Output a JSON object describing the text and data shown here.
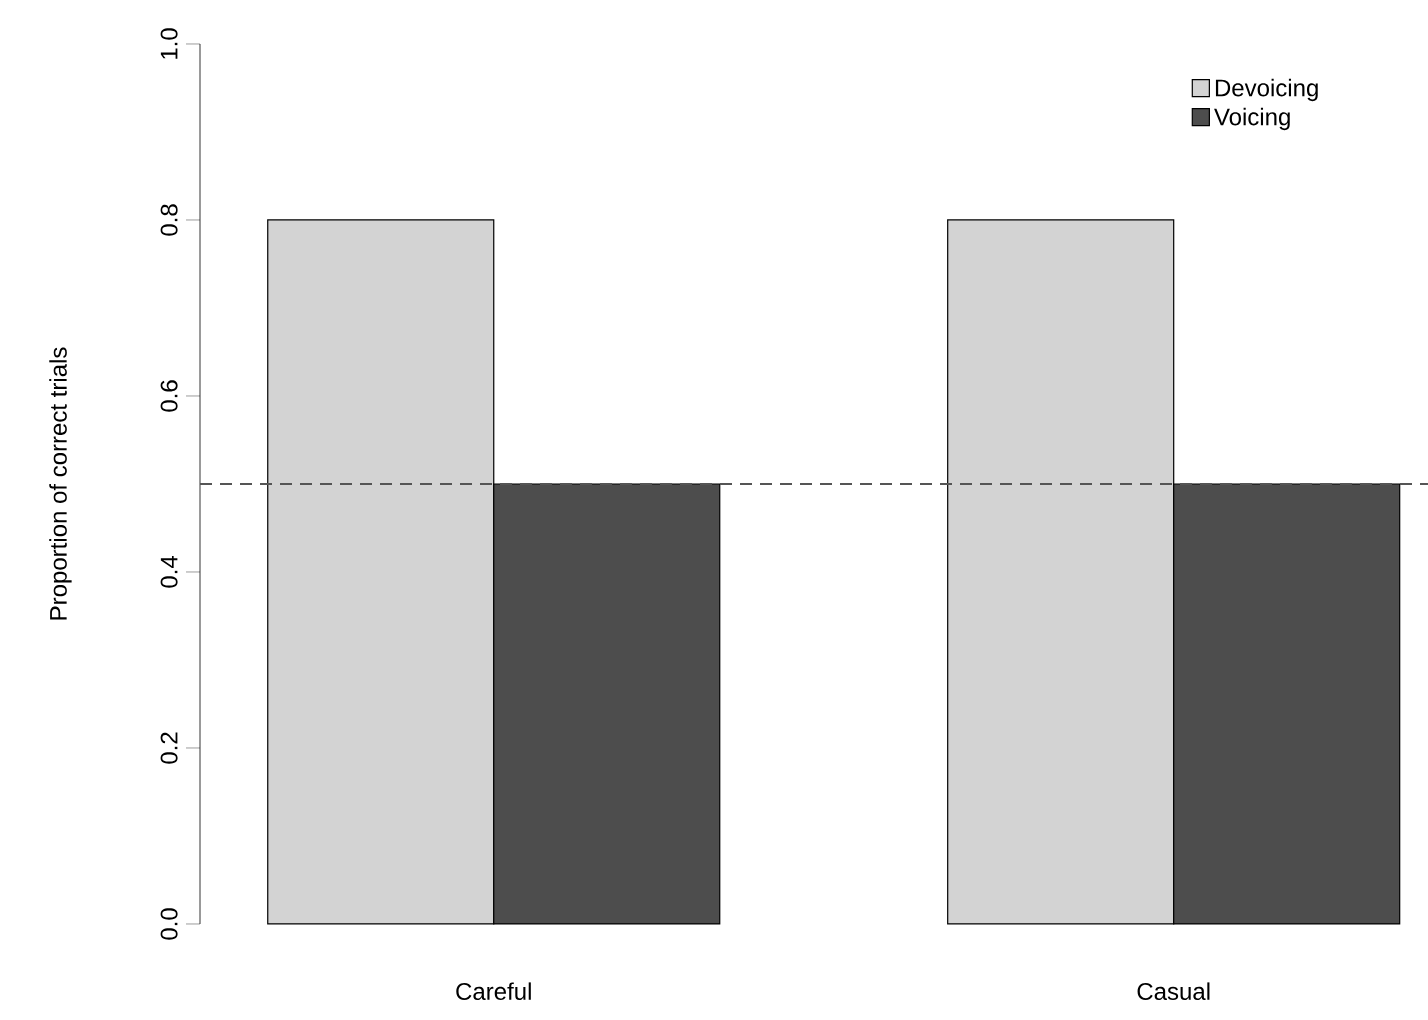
{
  "chart_data": {
    "type": "bar",
    "ylabel": "Proportion of correct trials",
    "categories": [
      "Careful",
      "Casual"
    ],
    "series": [
      {
        "name": "Devoicing",
        "color": "#d3d3d3",
        "values": [
          0.8,
          0.8
        ]
      },
      {
        "name": "Voicing",
        "color": "#4d4d4d",
        "values": [
          0.5,
          0.5
        ]
      }
    ],
    "ylim": [
      0,
      1
    ],
    "yticks": [
      {
        "value": 0,
        "label": "0.0"
      },
      0.2,
      0.4,
      0.6,
      0.8,
      {
        "value": 1,
        "label": "1.0"
      }
    ],
    "ref_lines": [
      {
        "axis": "y",
        "value": 0.5,
        "color": "#555555",
        "line_style": "dashed"
      }
    ],
    "legend": "top right",
    "grid": false
  }
}
